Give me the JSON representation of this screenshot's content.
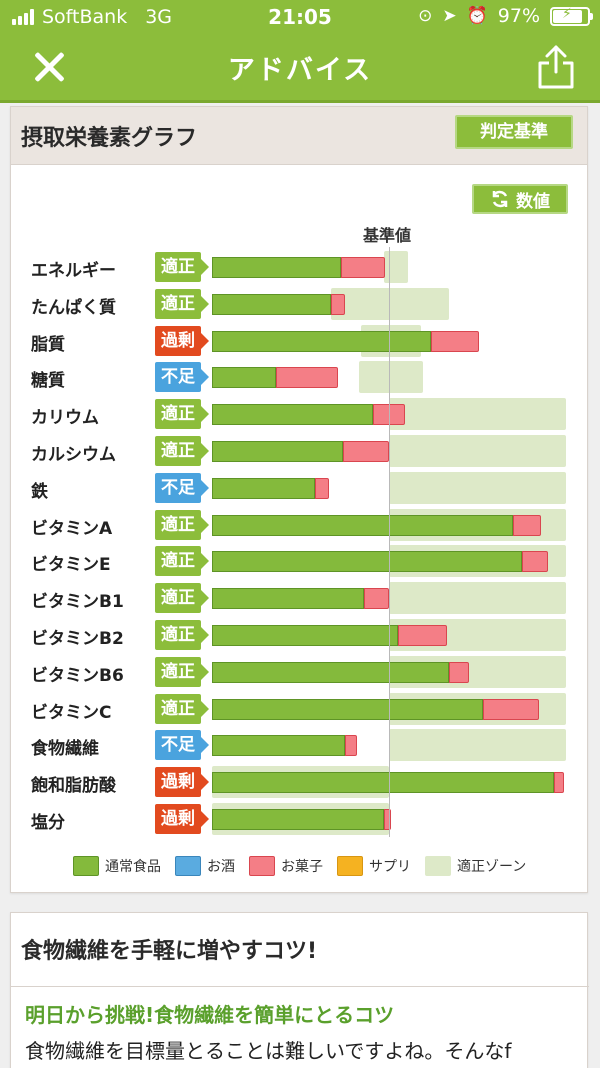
{
  "status": {
    "carrier": "SoftBank",
    "network": "3G",
    "time": "21:05",
    "battery": "97%"
  },
  "nav": {
    "title": "アドバイス"
  },
  "graph_card": {
    "title": "摂取栄養素グラフ",
    "judge_button": "判定基準",
    "value_button": "数値",
    "reference_label": "基準値"
  },
  "chart_data": {
    "type": "bar",
    "stacked": true,
    "reference_line": 100,
    "ylabel": "",
    "categories": [
      "エネルギー",
      "たんぱく質",
      "脂質",
      "糖質",
      "カリウム",
      "カルシウム",
      "鉄",
      "ビタミンA",
      "ビタミンE",
      "ビタミンB1",
      "ビタミンB2",
      "ビタミンB6",
      "ビタミンC",
      "食物繊維",
      "飽和脂肪酸",
      "塩分"
    ],
    "judgments": [
      "適正",
      "適正",
      "過剰",
      "不足",
      "適正",
      "適正",
      "不足",
      "適正",
      "適正",
      "適正",
      "適正",
      "適正",
      "適正",
      "不足",
      "過剰",
      "過剰"
    ],
    "judgment_types": [
      "ok",
      "ok",
      "over",
      "under",
      "ok",
      "ok",
      "under",
      "ok",
      "ok",
      "ok",
      "ok",
      "ok",
      "ok",
      "under",
      "over",
      "over"
    ],
    "series": [
      {
        "name": "通常食品",
        "values": [
          73,
          67,
          124,
          36,
          91,
          74,
          58,
          170,
          175,
          86,
          105,
          134,
          153,
          75,
          193,
          97
        ]
      },
      {
        "name": "お菓子",
        "values": [
          25,
          8,
          27,
          35,
          18,
          26,
          8,
          16,
          15,
          14,
          28,
          11,
          32,
          7,
          6,
          4
        ]
      }
    ],
    "zones": [
      [
        97,
        111
      ],
      [
        67,
        134
      ],
      [
        84,
        118
      ],
      [
        83,
        119
      ],
      [
        100,
        200
      ],
      [
        100,
        200
      ],
      [
        100,
        200
      ],
      [
        100,
        200
      ],
      [
        100,
        200
      ],
      [
        100,
        200
      ],
      [
        100,
        200
      ],
      [
        100,
        200
      ],
      [
        100,
        200
      ],
      [
        100,
        200
      ],
      [
        0,
        100
      ],
      [
        0,
        100
      ]
    ],
    "legend": [
      "通常食品",
      "お酒",
      "お菓子",
      "サプリ",
      "適正ゾーン"
    ],
    "colors": {
      "food": "#84ba3c",
      "alcohol": "#5aabe0",
      "snack": "#f47e86",
      "supplement": "#f5b221",
      "zone": "#dde9c8",
      "ok": "#8cbd3b",
      "over": "#e24a1f",
      "under": "#4aa3de"
    }
  },
  "tips_card": {
    "title": "食物繊維を手軽に増やすコツ!",
    "link": "明日から挑戦!食物繊維を簡単にとるコツ",
    "body": "食物繊維を目標量とることは難しいですよね。そんなf"
  }
}
